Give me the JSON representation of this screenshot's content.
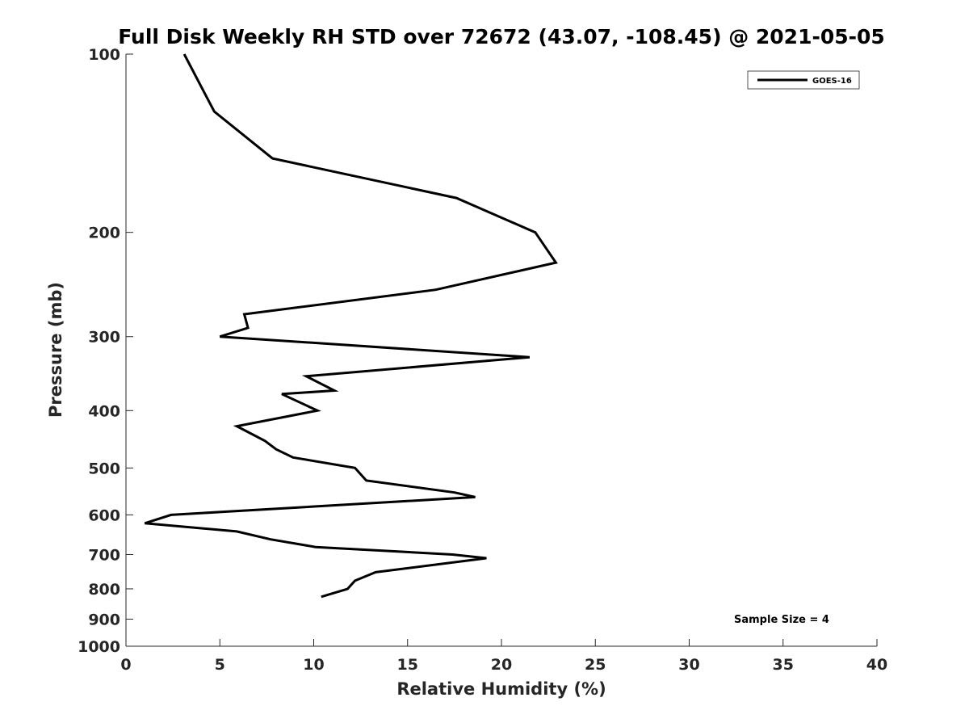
{
  "chart_data": {
    "type": "line",
    "title": "Full Disk Weekly RH STD over 72672 (43.07, -108.45) @ 2021-05-05",
    "xlabel": "Relative Humidity (%)",
    "ylabel": "Pressure (mb)",
    "xlim": [
      0,
      40
    ],
    "ylim": [
      100,
      1000
    ],
    "y_scale": "log",
    "y_reversed": true,
    "x_ticks": [
      0,
      5,
      10,
      15,
      20,
      25,
      30,
      35,
      40
    ],
    "y_ticks": [
      100,
      200,
      300,
      400,
      500,
      600,
      700,
      800,
      900,
      1000
    ],
    "grid": false,
    "legend_position": "top-right",
    "series": [
      {
        "name": "GOES-16",
        "color": "#000000",
        "points": [
          {
            "x": 3.1,
            "y": 100
          },
          {
            "x": 4.7,
            "y": 125
          },
          {
            "x": 7.8,
            "y": 150
          },
          {
            "x": 17.6,
            "y": 175
          },
          {
            "x": 21.8,
            "y": 200
          },
          {
            "x": 22.9,
            "y": 225
          },
          {
            "x": 16.5,
            "y": 250
          },
          {
            "x": 6.3,
            "y": 275
          },
          {
            "x": 6.5,
            "y": 290
          },
          {
            "x": 5.0,
            "y": 300
          },
          {
            "x": 21.5,
            "y": 325
          },
          {
            "x": 9.6,
            "y": 350
          },
          {
            "x": 11.1,
            "y": 370
          },
          {
            "x": 8.3,
            "y": 375
          },
          {
            "x": 10.2,
            "y": 400
          },
          {
            "x": 5.9,
            "y": 425
          },
          {
            "x": 7.4,
            "y": 450
          },
          {
            "x": 8.0,
            "y": 465
          },
          {
            "x": 8.9,
            "y": 480
          },
          {
            "x": 12.2,
            "y": 500
          },
          {
            "x": 12.8,
            "y": 525
          },
          {
            "x": 17.5,
            "y": 550
          },
          {
            "x": 18.6,
            "y": 560
          },
          {
            "x": 2.4,
            "y": 600
          },
          {
            "x": 1.0,
            "y": 620
          },
          {
            "x": 5.9,
            "y": 640
          },
          {
            "x": 7.7,
            "y": 660
          },
          {
            "x": 10.1,
            "y": 680
          },
          {
            "x": 17.4,
            "y": 700
          },
          {
            "x": 19.2,
            "y": 710
          },
          {
            "x": 13.3,
            "y": 750
          },
          {
            "x": 12.2,
            "y": 775
          },
          {
            "x": 11.8,
            "y": 800
          },
          {
            "x": 10.4,
            "y": 825
          }
        ]
      }
    ],
    "annotations": [
      {
        "text": "Sample Size = 4",
        "position": "bottom-right"
      }
    ]
  }
}
